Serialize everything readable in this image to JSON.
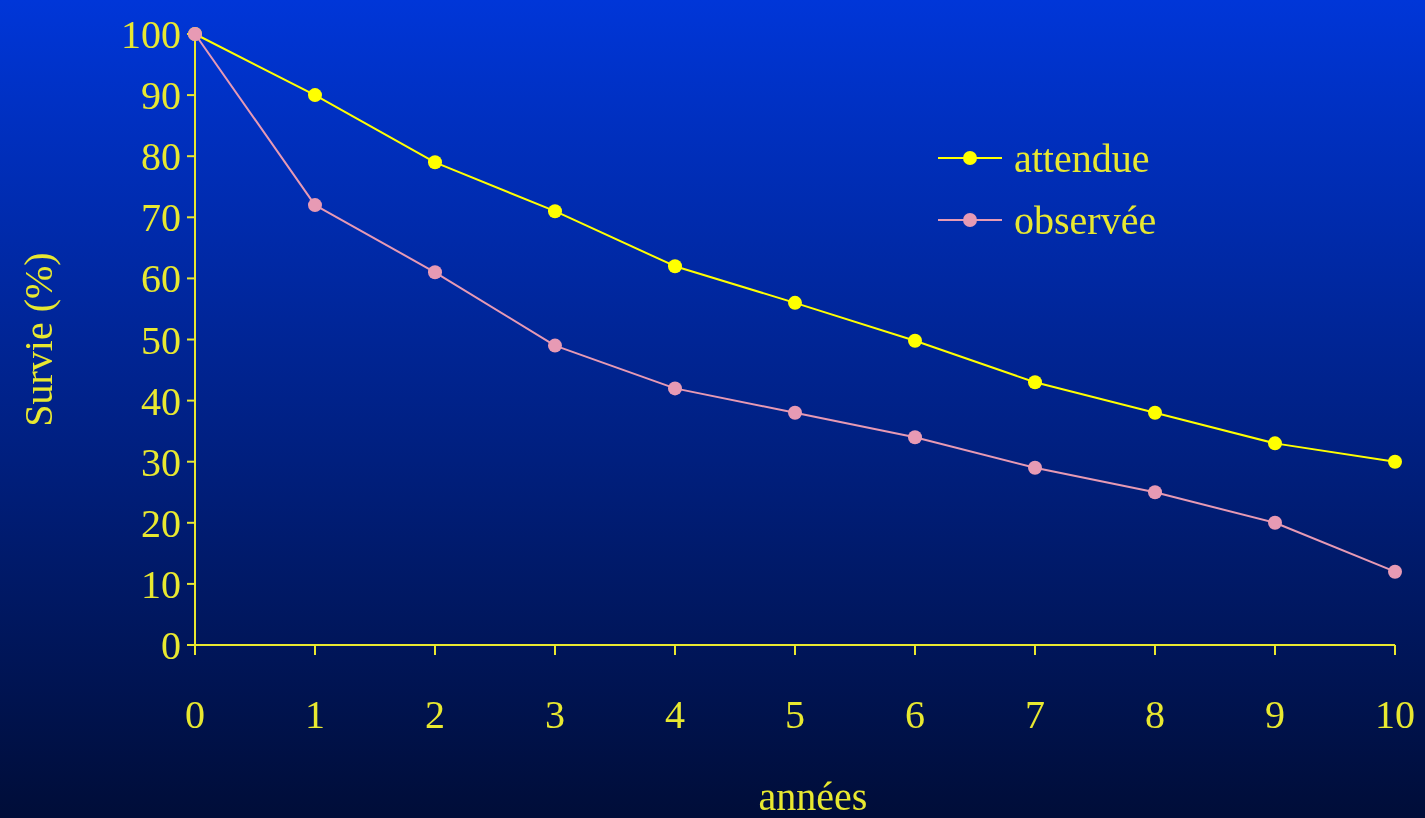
{
  "chart_data": {
    "type": "line",
    "xlabel": "années",
    "ylabel": "Survie (%)",
    "x": [
      0,
      1,
      2,
      3,
      4,
      5,
      6,
      7,
      8,
      9,
      10
    ],
    "xlim": [
      0,
      10
    ],
    "xticks": [
      0,
      1,
      2,
      3,
      4,
      5,
      6,
      7,
      8,
      9,
      10
    ],
    "ylim": [
      0,
      100
    ],
    "yticks": [
      0,
      10,
      20,
      30,
      40,
      50,
      60,
      70,
      80,
      90,
      100
    ],
    "grid": false,
    "legend": "top right",
    "marker": "circle",
    "line_style": "solid",
    "series": [
      {
        "name": "attendue",
        "color": "#ffff00",
        "values": [
          100,
          90,
          79,
          71,
          62,
          56,
          49.8,
          43,
          38,
          33,
          30
        ]
      },
      {
        "name": "observée",
        "color": "#e79ab4",
        "values": [
          100,
          72,
          61,
          49,
          42,
          38,
          34,
          29,
          25,
          20,
          12
        ]
      }
    ]
  }
}
